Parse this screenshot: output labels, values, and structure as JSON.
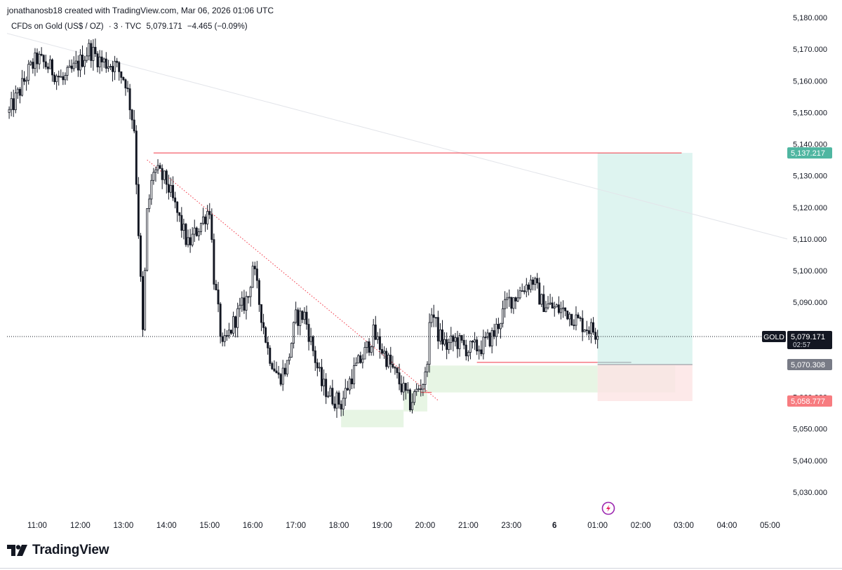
{
  "header": {
    "created_by": "jonathanosb18 created with TradingView.com, Mar 06, 2026 01:06 UTC",
    "symbol_name": "CFDs on Gold (US$ / OZ)",
    "interval": "· 3 · TVC",
    "last_price": "5,079.171",
    "change": "−4.465 (−0.09%)"
  },
  "footer": {
    "brand": "TradingView"
  },
  "colors": {
    "candle": "#131722",
    "price_tag_target": "#4fb6a1",
    "price_tag_entry": "#787b86",
    "price_tag_stop": "#f77c80",
    "profit_zone": "#cdeee8",
    "loss_zone": "#fde4e4",
    "demand_zone": "#e6f4e3",
    "level_line": "#f23645",
    "trendline": "#f23645"
  },
  "chart_data": {
    "type": "candlestick",
    "title": "",
    "xlabel": "",
    "ylabel": "",
    "ylim": [
      5022,
      5182
    ],
    "y_ticks": [
      5030,
      5040,
      5050,
      5060,
      5070,
      5080,
      5090,
      5100,
      5110,
      5120,
      5130,
      5140,
      5150,
      5160,
      5170,
      5180
    ],
    "y_tick_labels": [
      "5,030.000",
      "5,040.000",
      "5,050.000",
      "5,060.000",
      "5,070.000",
      "5,080.000",
      "5,090.000",
      "5,100.000",
      "5,110.000",
      "5,120.000",
      "5,130.000",
      "5,140.000",
      "5,150.000",
      "5,160.000",
      "5,170.000",
      "5,180.000"
    ],
    "x_tick_labels": [
      "11:00",
      "12:00",
      "13:00",
      "14:00",
      "15:00",
      "16:00",
      "17:00",
      "18:00",
      "19:00",
      "20:00",
      "21:00",
      "23:00",
      "6",
      "01:00",
      "02:00",
      "03:00",
      "04:00",
      "05:00"
    ],
    "x_tick_hours": [
      11,
      12,
      13,
      14,
      15,
      16,
      17,
      18,
      19,
      20,
      21,
      22,
      23,
      24,
      25,
      26,
      27,
      28
    ],
    "xlim_hours": [
      10.3,
      28.4
    ],
    "candle_interval_minutes": 3,
    "anchor_path": [
      [
        10.35,
        5150
      ],
      [
        10.6,
        5157
      ],
      [
        10.8,
        5163
      ],
      [
        11.0,
        5167
      ],
      [
        11.3,
        5164
      ],
      [
        11.6,
        5160
      ],
      [
        12.0,
        5166
      ],
      [
        12.2,
        5170
      ],
      [
        12.5,
        5166
      ],
      [
        12.8,
        5165
      ],
      [
        13.05,
        5160
      ],
      [
        13.25,
        5145
      ],
      [
        13.45,
        5080
      ],
      [
        13.55,
        5118
      ],
      [
        13.7,
        5132
      ],
      [
        14.0,
        5128
      ],
      [
        14.2,
        5120
      ],
      [
        14.5,
        5108
      ],
      [
        14.8,
        5115
      ],
      [
        15.0,
        5120
      ],
      [
        15.1,
        5098
      ],
      [
        15.3,
        5075
      ],
      [
        15.6,
        5085
      ],
      [
        15.9,
        5092
      ],
      [
        16.0,
        5102
      ],
      [
        16.15,
        5090
      ],
      [
        16.35,
        5075
      ],
      [
        16.6,
        5066
      ],
      [
        16.8,
        5070
      ],
      [
        17.0,
        5085
      ],
      [
        17.2,
        5086
      ],
      [
        17.45,
        5072
      ],
      [
        17.6,
        5064
      ],
      [
        17.85,
        5060
      ],
      [
        18.05,
        5058
      ],
      [
        18.3,
        5067
      ],
      [
        18.6,
        5074
      ],
      [
        18.8,
        5080
      ],
      [
        19.0,
        5075
      ],
      [
        19.2,
        5070
      ],
      [
        19.5,
        5062
      ],
      [
        19.65,
        5058
      ],
      [
        19.85,
        5063
      ],
      [
        20.0,
        5066
      ],
      [
        20.15,
        5088
      ],
      [
        20.3,
        5080
      ],
      [
        20.5,
        5076
      ],
      [
        20.7,
        5078
      ],
      [
        21.0,
        5075
      ],
      [
        21.3,
        5076
      ],
      [
        21.6,
        5080
      ],
      [
        21.9,
        5090
      ],
      [
        22.1,
        5092
      ],
      [
        22.3,
        5095
      ],
      [
        22.5,
        5097
      ],
      [
        22.7,
        5090
      ],
      [
        23.0,
        5088
      ],
      [
        23.3,
        5087
      ],
      [
        23.55,
        5084
      ],
      [
        23.65,
        5083
      ],
      [
        23.92,
        5081
      ],
      [
        24.02,
        5079
      ]
    ],
    "last_price": 5079.171,
    "last_price_label": "5,079.171",
    "countdown": "02:57",
    "symbol_tag": "GOLD",
    "annotations": {
      "resistance_line": {
        "price": 5137.217,
        "from_hour": 13.7,
        "to_hour": 25.95
      },
      "long_position": {
        "from_hour": 24.0,
        "to_hour": 26.2,
        "target": 5137.217,
        "target_label": "5,137.217",
        "entry": 5070.308,
        "entry_label": "5,070.308",
        "stop": 5058.777,
        "stop_label": "5,058.777"
      },
      "entry_level_line": {
        "price": 5071,
        "from_hour": 21.2,
        "to_hour": 24.0
      },
      "support_marker": {
        "price": 5061.5,
        "from_hour": 19.9,
        "to_hour": 20.15
      },
      "trendline_dotted": {
        "from": [
          13.55,
          5135
        ],
        "to": [
          20.3,
          5059
        ]
      },
      "trendline_faint": {
        "from": [
          10.3,
          5175
        ],
        "to": [
          28.4,
          5110
        ]
      },
      "demand_zones": [
        {
          "from_hour": 18.05,
          "to_hour": 19.5,
          "low": 5050.5,
          "high": 5056
        },
        {
          "from_hour": 19.5,
          "to_hour": 20.05,
          "low": 5055.5,
          "high": 5062
        },
        {
          "from_hour": 20.05,
          "to_hour": 24.0,
          "low": 5061.5,
          "high": 5070
        },
        {
          "from_hour": 24.0,
          "to_hour": 25.8,
          "low": 5061.5,
          "high": 5070
        }
      ]
    }
  }
}
